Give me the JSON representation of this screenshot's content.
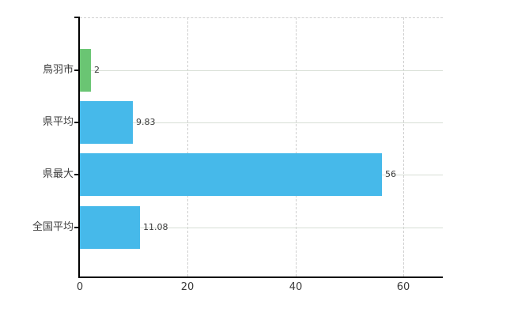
{
  "chart_data": {
    "type": "bar",
    "orientation": "horizontal",
    "title": "",
    "xlabel": "",
    "ylabel": "",
    "categories": [
      "鳥羽市",
      "県平均",
      "県最大",
      "全国平均"
    ],
    "values": [
      2,
      9.83,
      56,
      11.08
    ],
    "value_labels": [
      "2",
      "9.83",
      "56",
      "11.08"
    ],
    "bar_colors": [
      "#6ac573",
      "#46b9ea",
      "#46b9ea",
      "#46b9ea"
    ],
    "x_ticks": [
      0,
      20,
      40,
      60
    ],
    "x_tick_labels": [
      "0",
      "20",
      "40",
      "60"
    ],
    "xlim": [
      0,
      67.3
    ],
    "grid": true,
    "legend": "none",
    "colors": {
      "green_bar": "#6ac573",
      "blue_bar": "#46b9ea",
      "horizontal_grid": "#d7ded5",
      "vertical_grid_dashed": "#cfcfcf",
      "axis": "#000000",
      "text": "#3a3a3a",
      "background": "#ffffff"
    }
  }
}
